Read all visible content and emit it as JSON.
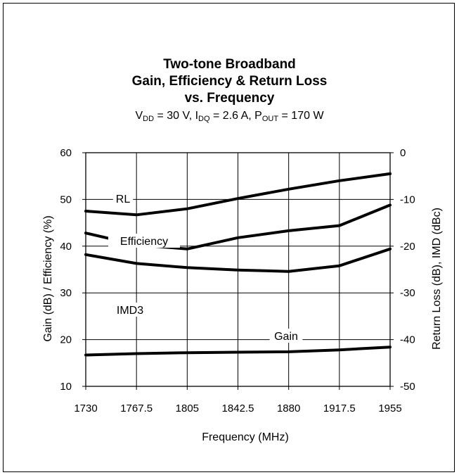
{
  "chart_data": {
    "type": "line",
    "title_lines": [
      "Two-tone Broadband",
      "Gain, Efficiency & Return Loss",
      "vs. Frequency"
    ],
    "subtitle": {
      "vdd_sym": "V",
      "vdd_sub": "DD",
      "vdd_val": " = 30 V, ",
      "idq_sym": "I",
      "idq_sub": "DQ",
      "idq_val": " = 2.6 A, ",
      "pout_sym": "P",
      "pout_sub": "OUT",
      "pout_val": " = 170 W"
    },
    "xlabel": "Frequency (MHz)",
    "ylabel_left": "Gain (dB) / Efficiency (%)",
    "ylabel_right": "Return Loss (dB), IMD (dBc)",
    "x_ticks": [
      "1730",
      "1767.5",
      "1805",
      "1842.5",
      "1880",
      "1917.5",
      "1955"
    ],
    "xlim": [
      1730,
      1955
    ],
    "y_left_ticks": [
      "10",
      "20",
      "30",
      "40",
      "50",
      "60"
    ],
    "ylim_left": [
      10,
      60
    ],
    "y_right_ticks": [
      "-50",
      "-40",
      "-30",
      "-20",
      "-10",
      "0"
    ],
    "ylim_right": [
      -50,
      0
    ],
    "grid": true,
    "series": [
      {
        "name": "RL",
        "axis": "right",
        "x": [
          1730,
          1767.5,
          1805,
          1842.5,
          1880,
          1917.5,
          1955
        ],
        "y": [
          -12.5,
          -13.3,
          -12.0,
          -9.8,
          -7.8,
          -6.0,
          -4.5
        ]
      },
      {
        "name": "Efficiency",
        "axis": "left",
        "x": [
          1730,
          1767.5,
          1805,
          1842.5,
          1880,
          1917.5,
          1955
        ],
        "y": [
          38.2,
          36.3,
          35.4,
          34.9,
          34.6,
          35.8,
          39.4
        ]
      },
      {
        "name": "IMD3",
        "axis": "right",
        "x": [
          1730,
          1767.5,
          1805,
          1842.5,
          1880,
          1917.5,
          1955
        ],
        "y": [
          -17.2,
          -19.7,
          -20.6,
          -18.2,
          -16.7,
          -15.6,
          -11.2
        ]
      },
      {
        "name": "Gain",
        "axis": "left",
        "x": [
          1730,
          1767.5,
          1805,
          1842.5,
          1880,
          1917.5,
          1955
        ],
        "y": [
          16.7,
          17.0,
          17.2,
          17.3,
          17.4,
          17.8,
          18.4
        ]
      }
    ]
  }
}
